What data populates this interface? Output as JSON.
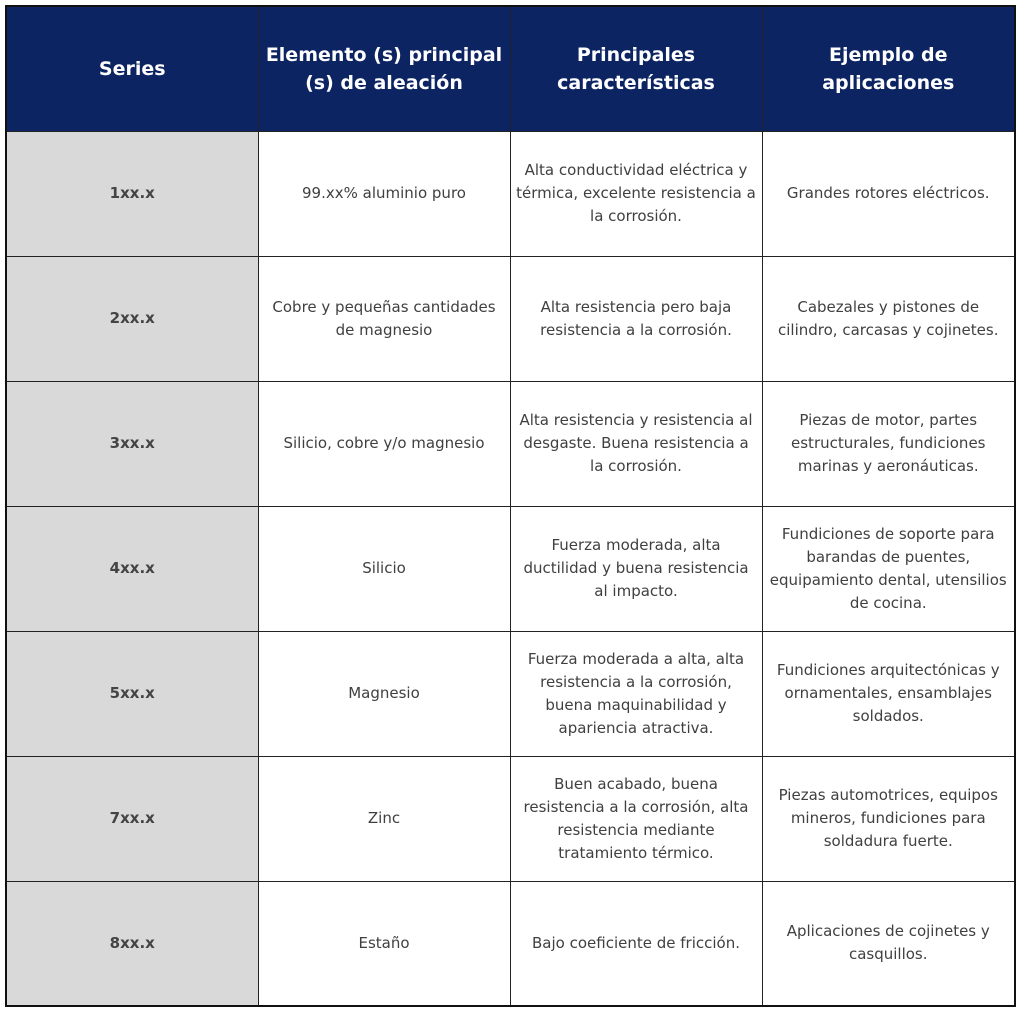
{
  "table": {
    "header": [
      "Series",
      "Elemento (s) principal (s) de aleación",
      "Principales características",
      "Ejemplo de aplicaciones"
    ],
    "rows": [
      [
        "1xx.x",
        "99.xx% aluminio puro",
        "Alta conductividad eléctrica y térmica, excelente resistencia a la corrosión.",
        "Grandes rotores eléctricos."
      ],
      [
        "2xx.x",
        "Cobre y pequeñas cantidades de magnesio",
        "Alta resistencia pero baja resistencia a la corrosión.",
        "Cabezales y pistones de cilindro, carcasas y cojinetes."
      ],
      [
        "3xx.x",
        "Silicio, cobre y/o magnesio",
        "Alta resistencia y resistencia al desgaste. Buena resistencia a la corrosión.",
        "Piezas de motor, partes estructurales, fundiciones marinas y aeronáuticas."
      ],
      [
        "4xx.x",
        "Silicio",
        "Fuerza moderada, alta ductilidad y buena resistencia al impacto.",
        "Fundiciones de soporte para barandas de puentes, equipamiento dental, utensilios de cocina."
      ],
      [
        "5xx.x",
        "Magnesio",
        "Fuerza moderada a alta, alta resistencia a la corrosión, buena maquinabilidad y apariencia atractiva.",
        "Fundiciones arquitectónicas y ornamentales, ensamblajes soldados."
      ],
      [
        "7xx.x",
        "Zinc",
        "Buen acabado, buena resistencia a la corrosión, alta resistencia mediante tratamiento térmico.",
        "Piezas automotrices, equipos mineros, fundiciones para soldadura fuerte."
      ],
      [
        "8xx.x",
        "Estaño",
        "Bajo coeficiente de fricción.",
        "Aplicaciones de cojinetes y casquillos."
      ]
    ]
  }
}
